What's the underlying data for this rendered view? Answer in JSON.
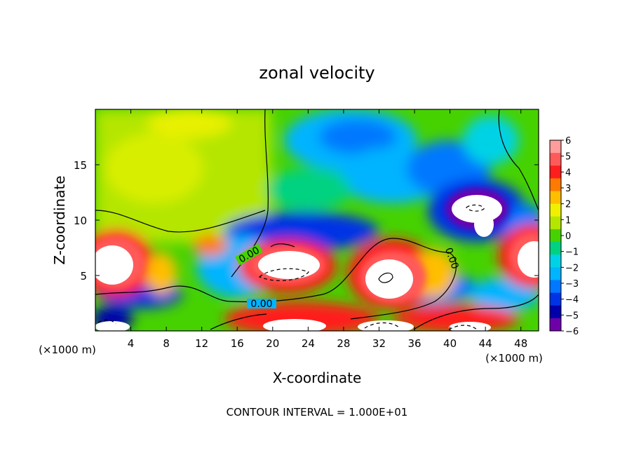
{
  "chart_data": {
    "type": "heatmap",
    "title": "zonal velocity",
    "xlabel": "X-coordinate",
    "ylabel": "Z-coordinate",
    "x_unit_label": "(×1000 m)",
    "x_unit_label_right": "(×1000 m)",
    "footer": "CONTOUR INTERVAL = 1.000E+01",
    "xlim": [
      0,
      50
    ],
    "ylim": [
      0,
      20
    ],
    "x_ticks": [
      4,
      8,
      12,
      16,
      20,
      24,
      28,
      32,
      36,
      40,
      44,
      48
    ],
    "x_tick_labels": [
      "4",
      "8",
      "12",
      "16",
      "20",
      "24",
      "28",
      "32",
      "36",
      "40",
      "44",
      "48"
    ],
    "y_ticks": [
      5,
      10,
      15
    ],
    "y_tick_labels": [
      "5",
      "10",
      "15"
    ],
    "contour_labels": [
      "0.00",
      "0.00",
      "0.00"
    ],
    "colorbar": {
      "levels": [
        6,
        5,
        4,
        3,
        2,
        1,
        0,
        -1,
        -2,
        -3,
        -4,
        -5,
        -6
      ],
      "level_labels": [
        "6",
        "5",
        "4",
        "3",
        "2",
        "1",
        "0",
        "−1",
        "−2",
        "−3",
        "−4",
        "−5",
        "−6"
      ],
      "colors": [
        "#ff9c9c",
        "#ff5a5a",
        "#ff1e1e",
        "#ff7a00",
        "#ffbe00",
        "#f0f000",
        "#b4e600",
        "#46d200",
        "#00d282",
        "#00d2e6",
        "#00b4ff",
        "#0078ff",
        "#0032e6",
        "#0000aa",
        "#6e00aa"
      ]
    }
  }
}
